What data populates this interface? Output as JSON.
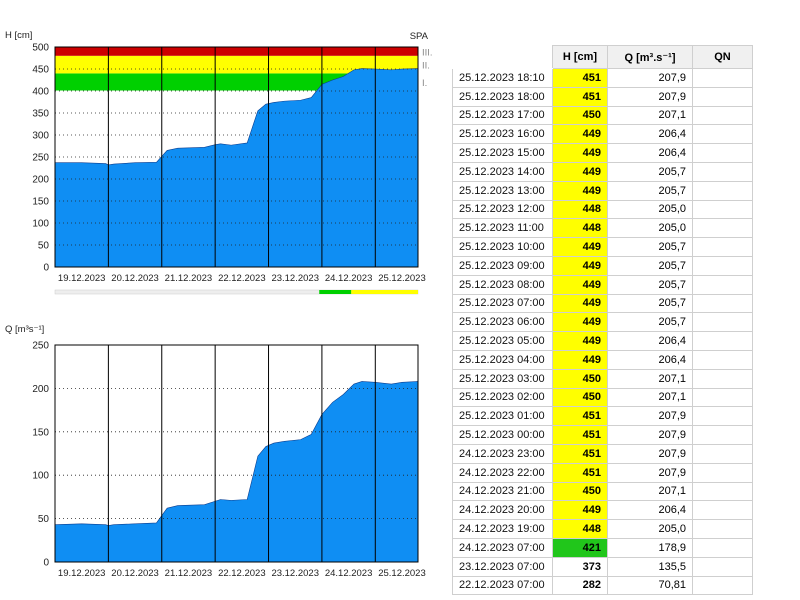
{
  "chart_data": [
    {
      "type": "area",
      "ylabel": "H [cm]",
      "ylim": [
        0,
        500
      ],
      "yticks": [
        0,
        50,
        100,
        150,
        200,
        250,
        300,
        350,
        400,
        450,
        500
      ],
      "xtick_labels": [
        "19.12.2023",
        "20.12.2023",
        "21.12.2023",
        "22.12.2023",
        "23.12.2023",
        "24.12.2023",
        "25.12.2023"
      ],
      "xlim_days": [
        0,
        6.8
      ],
      "corner_label": "SPA",
      "levels": [
        {
          "label": "I.",
          "from": 400,
          "to": 440,
          "color": "#00d000"
        },
        {
          "label": "II.",
          "from": 440,
          "to": 480,
          "color": "#ffff00"
        },
        {
          "label": "III.",
          "from": 480,
          "to": 500,
          "color": "#cc0000"
        }
      ],
      "fill_color": "#0f8ef3",
      "series": [
        {
          "x": [
            0,
            0.5,
            0.95,
            1.0,
            1.1,
            1.5,
            1.9,
            2.1,
            2.3,
            2.8,
            3.0,
            3.1,
            3.3,
            3.6,
            3.8,
            3.95,
            4.1,
            4.3,
            4.6,
            4.8,
            5.0,
            5.2,
            5.4,
            5.6,
            5.75,
            6.0,
            6.3,
            6.5,
            6.8
          ],
          "y": [
            237,
            237,
            235,
            232,
            234,
            237,
            238,
            265,
            270,
            272,
            278,
            280,
            277,
            282,
            355,
            370,
            374,
            377,
            379,
            385,
            415,
            425,
            433,
            448,
            451,
            450,
            448,
            450,
            451
          ]
        }
      ]
    },
    {
      "type": "area",
      "ylabel": "Q [m³s⁻¹]",
      "ylim": [
        0,
        250
      ],
      "yticks": [
        0,
        50,
        100,
        150,
        200,
        250
      ],
      "xtick_labels": [
        "19.12.2023",
        "20.12.2023",
        "21.12.2023",
        "22.12.2023",
        "23.12.2023",
        "24.12.2023",
        "25.12.2023"
      ],
      "xlim_days": [
        0,
        6.8
      ],
      "fill_color": "#0f8ef3",
      "series": [
        {
          "x": [
            0,
            0.5,
            0.95,
            1.0,
            1.1,
            1.5,
            1.9,
            2.1,
            2.3,
            2.8,
            3.0,
            3.1,
            3.3,
            3.6,
            3.8,
            3.95,
            4.1,
            4.3,
            4.6,
            4.8,
            5.0,
            5.2,
            5.4,
            5.6,
            5.75,
            6.0,
            6.3,
            6.5,
            6.8
          ],
          "y": [
            43,
            44,
            43,
            42,
            43,
            44,
            45,
            62,
            65,
            66,
            70,
            72,
            71,
            72,
            122,
            133,
            137,
            139,
            141,
            147,
            170,
            184,
            193,
            205,
            208,
            207,
            205,
            207,
            208
          ]
        }
      ]
    }
  ],
  "table": {
    "headers": [
      "",
      "H [cm]",
      "Q [m³.s⁻¹]",
      "QN",
      ""
    ],
    "h_level_colors": {
      "yellow": "#ffff00",
      "green": "#21c61b"
    },
    "rows": [
      {
        "date": "25.12.2023 18:10",
        "h": "451",
        "q": "207,9",
        "level": "yellow"
      },
      {
        "date": "25.12.2023 18:00",
        "h": "451",
        "q": "207,9",
        "level": "yellow"
      },
      {
        "date": "25.12.2023 17:00",
        "h": "450",
        "q": "207,1",
        "level": "yellow"
      },
      {
        "date": "25.12.2023 16:00",
        "h": "449",
        "q": "206,4",
        "level": "yellow"
      },
      {
        "date": "25.12.2023 15:00",
        "h": "449",
        "q": "206,4",
        "level": "yellow"
      },
      {
        "date": "25.12.2023 14:00",
        "h": "449",
        "q": "205,7",
        "level": "yellow"
      },
      {
        "date": "25.12.2023 13:00",
        "h": "449",
        "q": "205,7",
        "level": "yellow"
      },
      {
        "date": "25.12.2023 12:00",
        "h": "448",
        "q": "205,0",
        "level": "yellow"
      },
      {
        "date": "25.12.2023 11:00",
        "h": "448",
        "q": "205,0",
        "level": "yellow"
      },
      {
        "date": "25.12.2023 10:00",
        "h": "449",
        "q": "205,7",
        "level": "yellow"
      },
      {
        "date": "25.12.2023 09:00",
        "h": "449",
        "q": "205,7",
        "level": "yellow"
      },
      {
        "date": "25.12.2023 08:00",
        "h": "449",
        "q": "205,7",
        "level": "yellow"
      },
      {
        "date": "25.12.2023 07:00",
        "h": "449",
        "q": "205,7",
        "level": "yellow"
      },
      {
        "date": "25.12.2023 06:00",
        "h": "449",
        "q": "205,7",
        "level": "yellow"
      },
      {
        "date": "25.12.2023 05:00",
        "h": "449",
        "q": "206,4",
        "level": "yellow"
      },
      {
        "date": "25.12.2023 04:00",
        "h": "449",
        "q": "206,4",
        "level": "yellow"
      },
      {
        "date": "25.12.2023 03:00",
        "h": "450",
        "q": "207,1",
        "level": "yellow"
      },
      {
        "date": "25.12.2023 02:00",
        "h": "450",
        "q": "207,1",
        "level": "yellow"
      },
      {
        "date": "25.12.2023 01:00",
        "h": "451",
        "q": "207,9",
        "level": "yellow"
      },
      {
        "date": "25.12.2023 00:00",
        "h": "451",
        "q": "207,9",
        "level": "yellow"
      },
      {
        "date": "24.12.2023 23:00",
        "h": "451",
        "q": "207,9",
        "level": "yellow"
      },
      {
        "date": "24.12.2023 22:00",
        "h": "451",
        "q": "207,9",
        "level": "yellow"
      },
      {
        "date": "24.12.2023 21:00",
        "h": "450",
        "q": "207,1",
        "level": "yellow"
      },
      {
        "date": "24.12.2023 20:00",
        "h": "449",
        "q": "206,4",
        "level": "yellow"
      },
      {
        "date": "24.12.2023 19:00",
        "h": "448",
        "q": "205,0",
        "level": "yellow"
      },
      {
        "date": "24.12.2023 07:00",
        "h": "421",
        "q": "178,9",
        "level": "green"
      },
      {
        "date": "23.12.2023 07:00",
        "h": "373",
        "q": "135,5",
        "level": "none"
      },
      {
        "date": "22.12.2023 07:00",
        "h": "282",
        "q": "70,81",
        "level": "none"
      }
    ]
  }
}
